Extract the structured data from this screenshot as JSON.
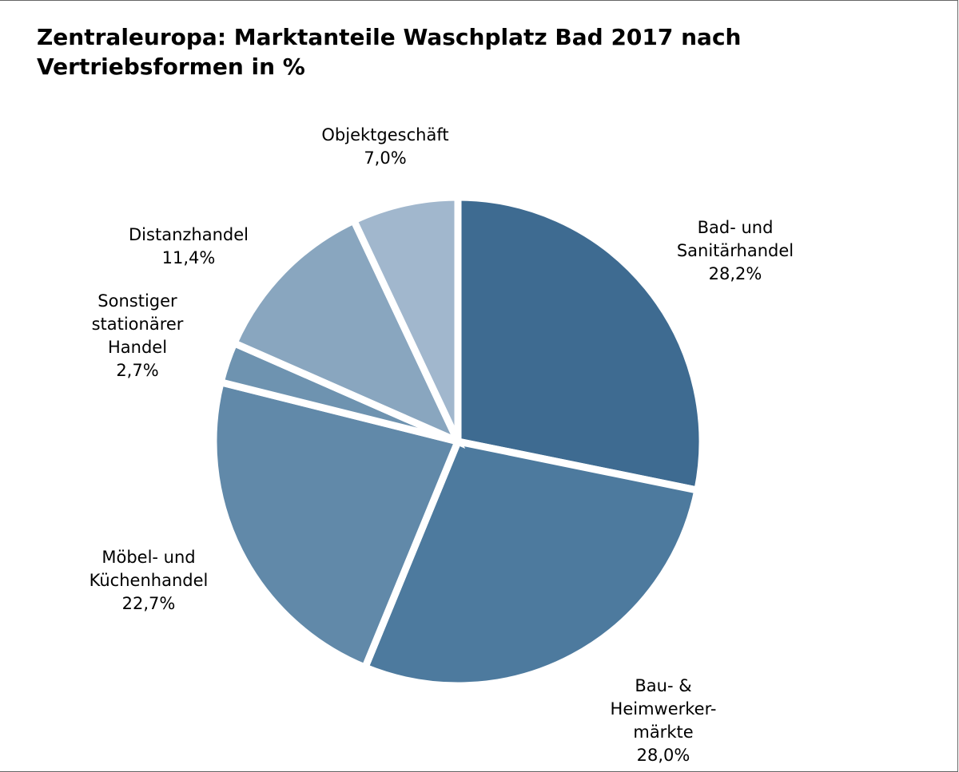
{
  "chart_data": {
    "type": "pie",
    "title": "Zentraleuropa: Marktanteile Waschplatz Bad 2017 nach Vertriebsformen in %",
    "title_lines": [
      "Zentraleuropa: Marktanteile Waschplatz Bad 2017 nach",
      "Vertriebsformen in %"
    ],
    "slices": [
      {
        "key": "bad_sanitaer",
        "label": "Bad- und Sanitärhandel",
        "label_lines": [
          "Bad- und",
          "Sanitärhandel"
        ],
        "value": 28.2,
        "value_label": "28,2%",
        "color": "#3e6b91"
      },
      {
        "key": "bau_heimwerker",
        "label": "Bau- & Heimwerker-märkte",
        "label_lines": [
          "Bau- &",
          "Heimwerker-",
          "märkte"
        ],
        "value": 28.0,
        "value_label": "28,0%",
        "color": "#4d7a9e"
      },
      {
        "key": "moebel_kuechen",
        "label": "Möbel- und Küchenhandel",
        "label_lines": [
          "Möbel- und",
          "Küchenhandel"
        ],
        "value": 22.7,
        "value_label": "22,7%",
        "color": "#6189a9"
      },
      {
        "key": "sonstiger_stationaer",
        "label": "Sonstiger stationärer Handel",
        "label_lines": [
          "Sonstiger",
          "stationärer",
          "Handel"
        ],
        "value": 2.7,
        "value_label": "2,7%",
        "color": "#6e93b0"
      },
      {
        "key": "distanzhandel",
        "label": "Distanzhandel",
        "label_lines": [
          "Distanzhandel"
        ],
        "value": 11.4,
        "value_label": "11,4%",
        "color": "#89a6bf"
      },
      {
        "key": "objektgeschaeft",
        "label": "Objektgeschäft",
        "label_lines": [
          "Objektgeschäft"
        ],
        "value": 7.0,
        "value_label": "7,0%",
        "color": "#a1b7cd"
      }
    ],
    "start_angle": "12 o'clock",
    "direction": "clockwise",
    "legend": "none",
    "slice_separator_color": "#ffffff"
  }
}
